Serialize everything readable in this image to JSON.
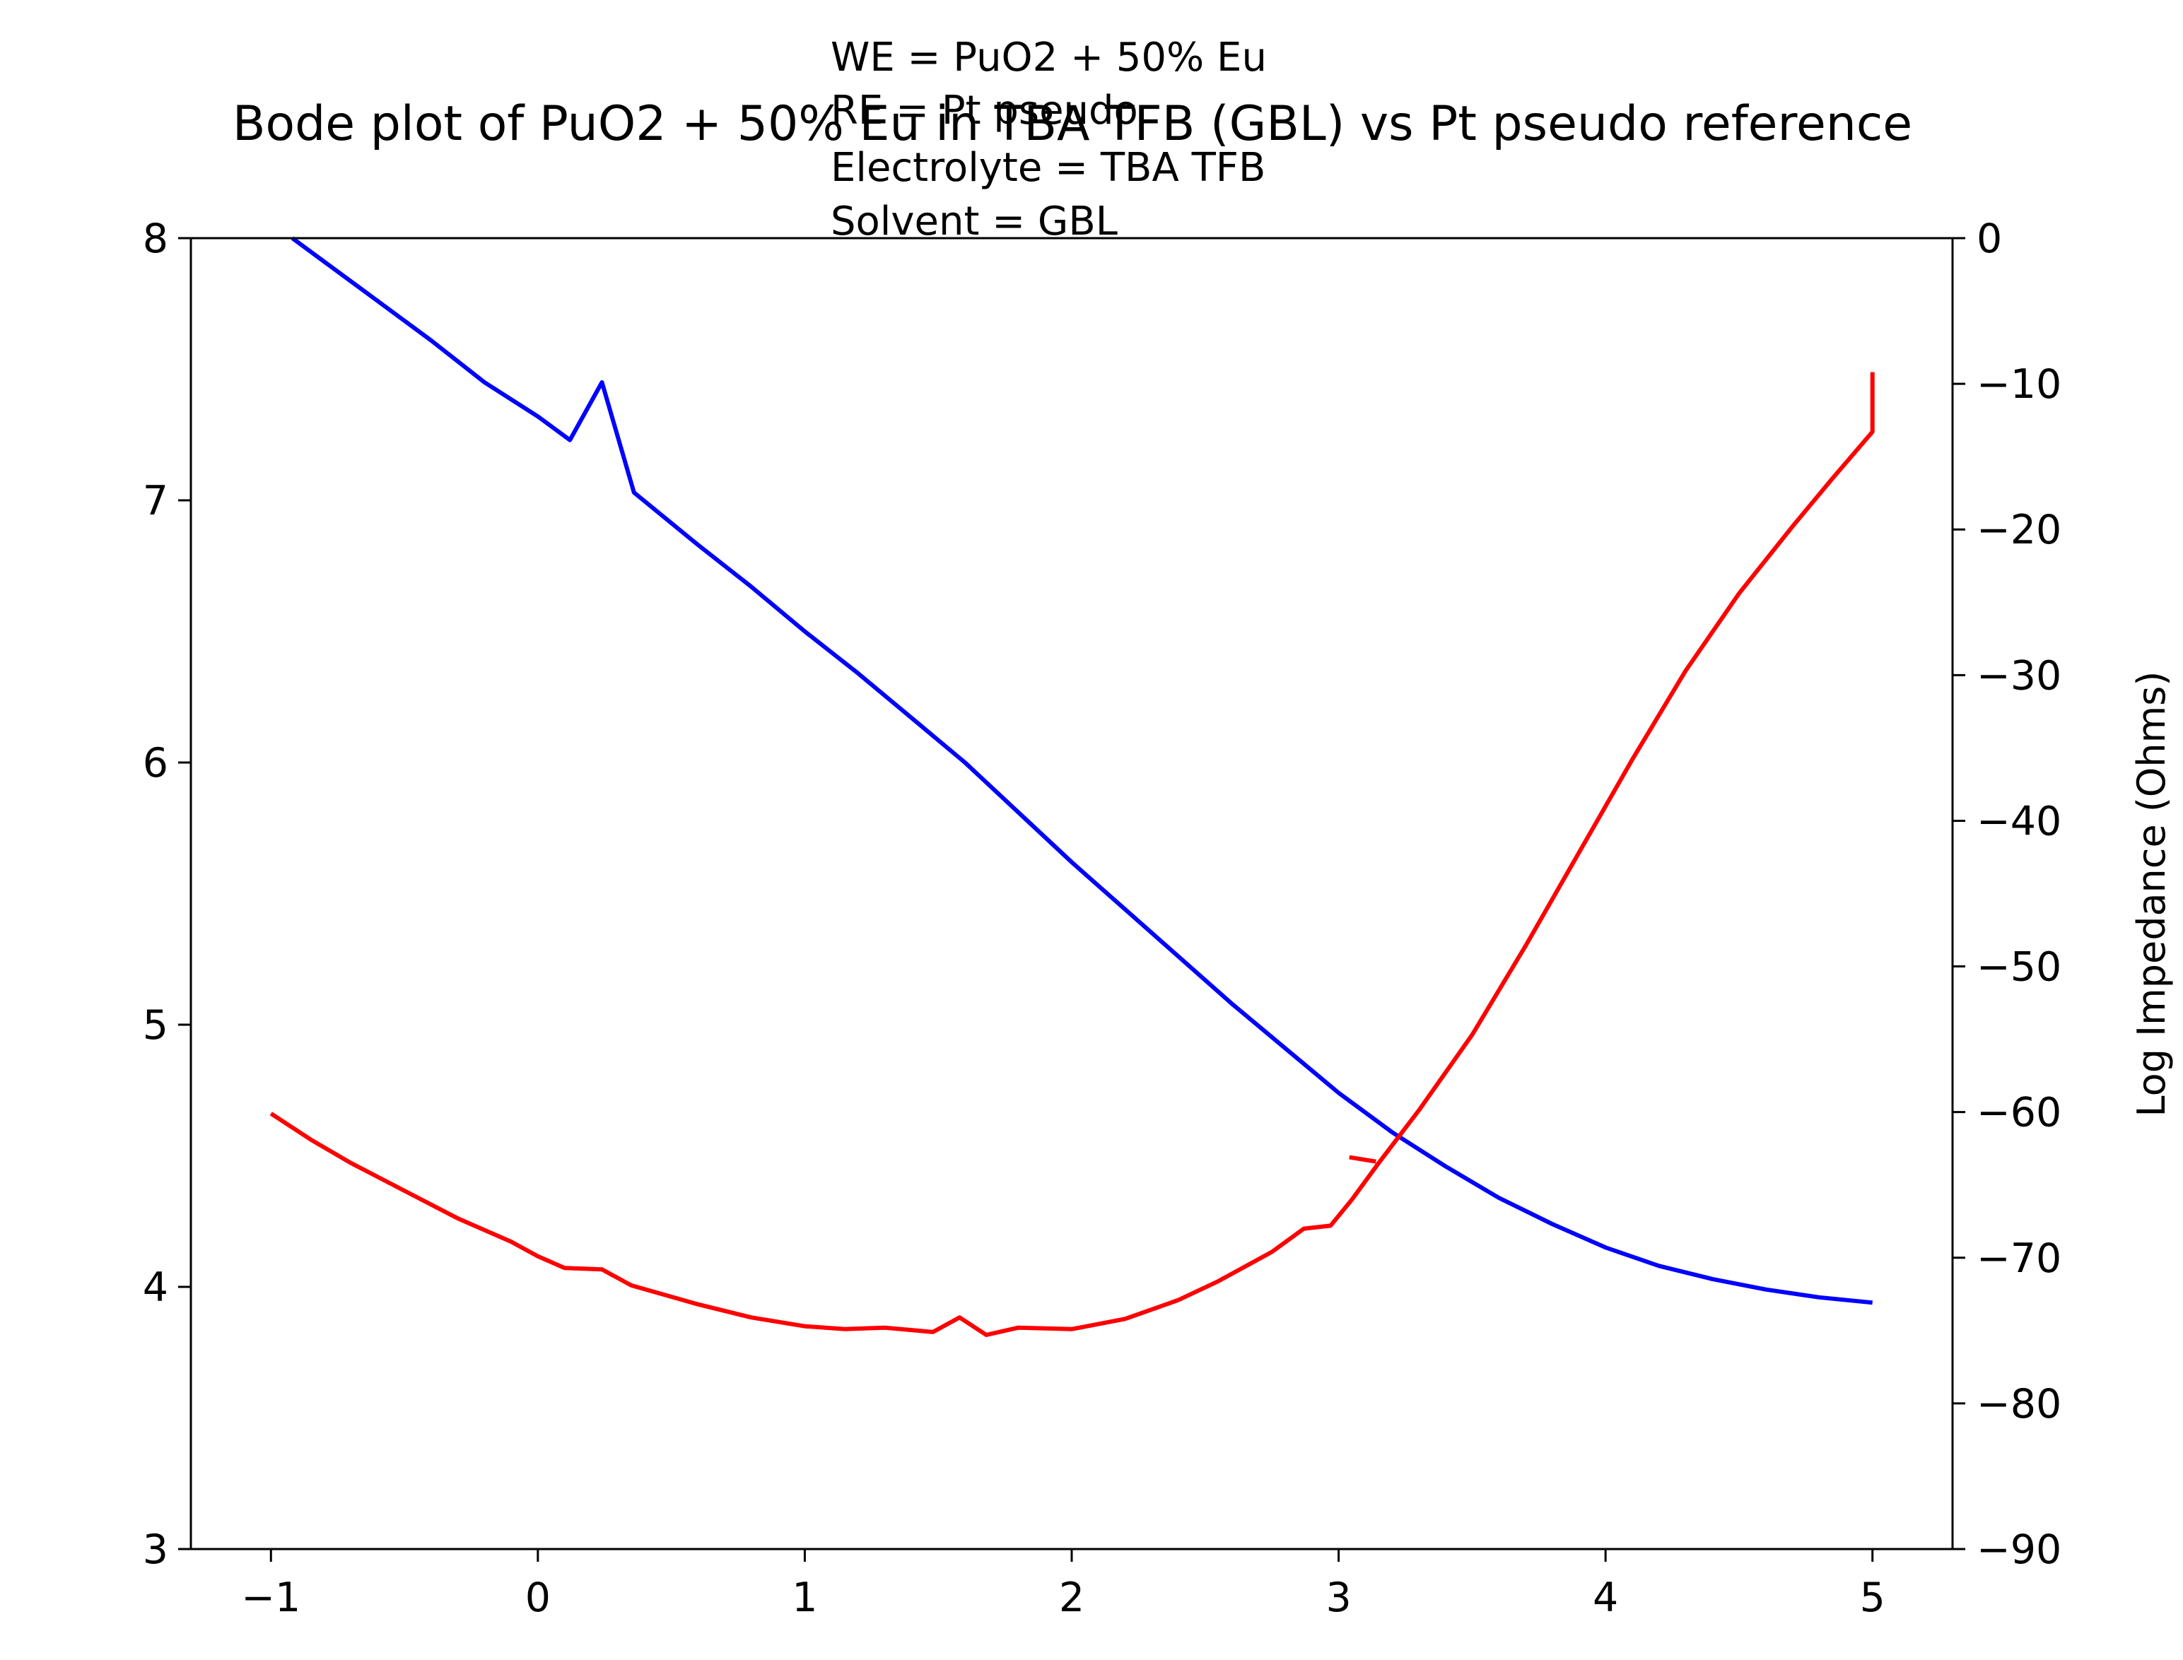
{
  "chart_data": {
    "type": "line",
    "title": "Bode plot of PuO2 + 50% Eu in TBA TFB (GBL) vs Pt pseudo reference",
    "annotations": [
      "WE = PuO2 + 50% Eu",
      "RE = Pt pseudo",
      "Electrolyte = TBA TFB",
      "Solvent = GBL"
    ],
    "xlabel": "",
    "ylabel": "",
    "ylabel_right": "Log Impedance (Ohms)",
    "xlim": [
      -1.3,
      5.3
    ],
    "ylim": [
      3,
      8
    ],
    "ylim_right": [
      -90,
      0
    ],
    "x_ticks": [
      "−1",
      "0",
      "1",
      "2",
      "3",
      "4",
      "5"
    ],
    "x_tick_values": [
      -1,
      0,
      1,
      2,
      3,
      4,
      5
    ],
    "y_ticks": [
      "3",
      "4",
      "5",
      "6",
      "7",
      "8"
    ],
    "y_tick_values": [
      3,
      4,
      5,
      6,
      7,
      8
    ],
    "y_right_ticks": [
      "−90",
      "−80",
      "−70",
      "−60",
      "−50",
      "−40",
      "−30",
      "−20",
      "−10",
      "0"
    ],
    "y_right_tick_values": [
      -90,
      -80,
      -70,
      -60,
      -50,
      -40,
      -30,
      -20,
      -10,
      0
    ],
    "grid": false,
    "series": [
      {
        "color": "#0000ff",
        "axis": "left",
        "points": [
          [
            -0.92,
            8.0
          ],
          [
            -0.8,
            7.91
          ],
          [
            -0.6,
            7.76
          ],
          [
            -0.4,
            7.61
          ],
          [
            -0.2,
            7.45
          ],
          [
            0.0,
            7.32
          ],
          [
            0.12,
            7.23
          ],
          [
            0.24,
            7.45
          ],
          [
            0.36,
            7.03
          ],
          [
            0.6,
            6.83
          ],
          [
            0.8,
            6.67
          ],
          [
            1.0,
            6.5
          ],
          [
            1.2,
            6.34
          ],
          [
            1.4,
            6.17
          ],
          [
            1.6,
            6.0
          ],
          [
            1.8,
            5.81
          ],
          [
            2.0,
            5.62
          ],
          [
            2.2,
            5.44
          ],
          [
            2.4,
            5.26
          ],
          [
            2.6,
            5.08
          ],
          [
            2.8,
            4.91
          ],
          [
            3.0,
            4.74
          ],
          [
            3.2,
            4.59
          ],
          [
            3.4,
            4.46
          ],
          [
            3.6,
            4.34
          ],
          [
            3.8,
            4.24
          ],
          [
            4.0,
            4.15
          ],
          [
            4.2,
            4.08
          ],
          [
            4.4,
            4.03
          ],
          [
            4.6,
            3.99
          ],
          [
            4.8,
            3.96
          ],
          [
            5.0,
            3.94
          ]
        ]
      },
      {
        "color": "#ff0000",
        "axis": "right",
        "points": [
          [
            -1.0,
            -60.1
          ],
          [
            -0.85,
            -61.9
          ],
          [
            -0.7,
            -63.5
          ],
          [
            -0.5,
            -65.4
          ],
          [
            -0.3,
            -67.3
          ],
          [
            -0.1,
            -68.9
          ],
          [
            0.0,
            -69.9
          ],
          [
            0.1,
            -70.7
          ],
          [
            0.24,
            -70.8
          ],
          [
            0.35,
            -71.9
          ],
          [
            0.6,
            -73.2
          ],
          [
            0.8,
            -74.1
          ],
          [
            1.0,
            -74.7
          ],
          [
            1.15,
            -74.9
          ],
          [
            1.3,
            -74.8
          ],
          [
            1.48,
            -75.1
          ],
          [
            1.58,
            -74.1
          ],
          [
            1.68,
            -75.3
          ],
          [
            1.8,
            -74.8
          ],
          [
            2.0,
            -74.9
          ],
          [
            2.2,
            -74.2
          ],
          [
            2.4,
            -72.9
          ],
          [
            2.55,
            -71.6
          ],
          [
            2.75,
            -69.6
          ],
          [
            2.87,
            -68.0
          ],
          [
            2.97,
            -67.8
          ],
          [
            3.05,
            -66.0
          ],
          [
            3.15,
            -63.5
          ],
          [
            3.3,
            -59.9
          ],
          [
            3.5,
            -54.7
          ],
          [
            3.7,
            -48.6
          ],
          [
            3.9,
            -42.2
          ],
          [
            4.1,
            -35.8
          ],
          [
            4.3,
            -29.7
          ],
          [
            4.5,
            -24.4
          ],
          [
            4.7,
            -19.8
          ],
          [
            4.85,
            -16.5
          ],
          [
            5.0,
            -13.3
          ],
          [
            5.0,
            -9.2
          ]
        ]
      },
      {
        "color": "#ff0000",
        "axis": "right",
        "points": [
          [
            3.04,
            -63.1
          ],
          [
            3.14,
            -63.4
          ]
        ]
      }
    ]
  }
}
